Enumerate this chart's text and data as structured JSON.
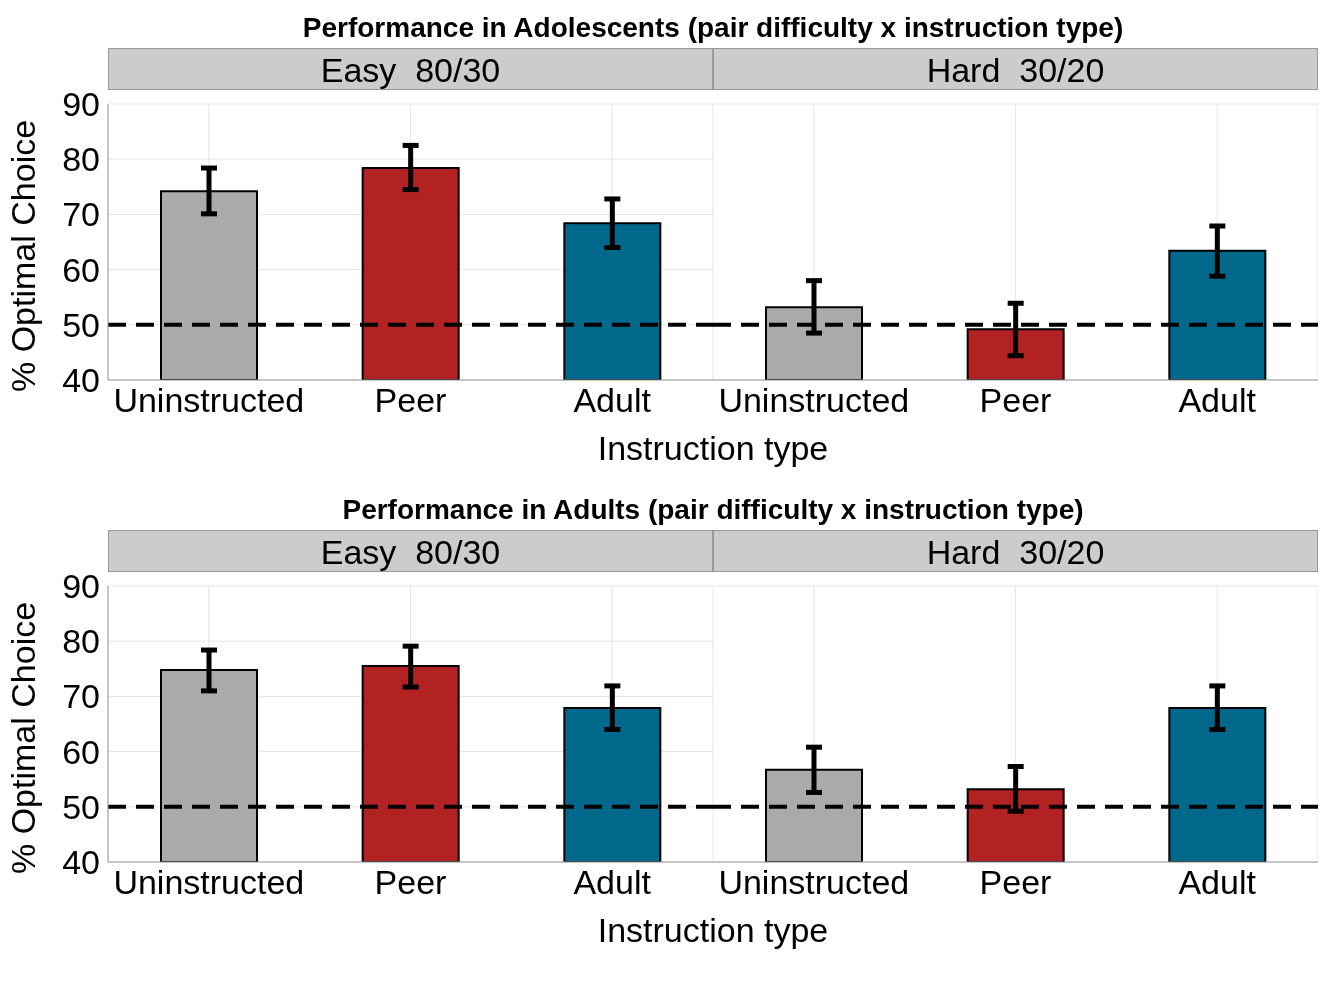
{
  "chart_data": [
    {
      "type": "bar",
      "title": "Performance in Adolescents (pair difficulty x instruction type)",
      "subtitle": "Easy  80/30",
      "xlabel": "Instruction type",
      "ylabel": "% Optimal Choice",
      "categories": [
        "Uninstructed",
        "Peer",
        "Adult"
      ],
      "values": [
        74.2,
        78.4,
        68.4
      ],
      "colors": [
        "#aaaaaa",
        "#b22222",
        "#00688b"
      ],
      "errors": [
        [
          70.1,
          78.4
        ],
        [
          74.5,
          82.5
        ],
        [
          64.0,
          72.8
        ]
      ],
      "ylim": [
        40,
        90
      ],
      "yticks": [
        40,
        50,
        60,
        70,
        80,
        90
      ],
      "grid": true,
      "ref_lines": [
        {
          "axis": "y",
          "value": 50,
          "color": "#000000",
          "line_style": "dashed"
        }
      ]
    },
    {
      "type": "bar",
      "subtitle": "Hard  30/20",
      "categories": [
        "Uninstructed",
        "Peer",
        "Adult"
      ],
      "values": [
        53.2,
        49.2,
        63.4
      ],
      "colors": [
        "#aaaaaa",
        "#b22222",
        "#00688b"
      ],
      "errors": [
        [
          48.5,
          58.0
        ],
        [
          44.4,
          53.9
        ],
        [
          58.8,
          67.9
        ]
      ],
      "ylim": [
        40,
        90
      ],
      "yticks": [
        40,
        50,
        60,
        70,
        80,
        90
      ],
      "tick_labels": "x",
      "grid": true,
      "ref_lines": [
        {
          "axis": "y",
          "value": 50,
          "color": "#000000",
          "line_style": "dashed"
        }
      ]
    },
    {
      "type": "bar",
      "title": "Performance in Adults (pair difficulty x instruction type)",
      "subtitle": "Easy  80/30",
      "xlabel": "Instruction type",
      "ylabel": "% Optimal Choice",
      "categories": [
        "Uninstructed",
        "Peer",
        "Adult"
      ],
      "values": [
        74.8,
        75.5,
        67.9
      ],
      "colors": [
        "#aaaaaa",
        "#b22222",
        "#00688b"
      ],
      "errors": [
        [
          71.0,
          78.4
        ],
        [
          71.7,
          79.1
        ],
        [
          64.0,
          71.9
        ]
      ],
      "ylim": [
        40,
        90
      ],
      "yticks": [
        40,
        50,
        60,
        70,
        80,
        90
      ],
      "grid": true,
      "ref_lines": [
        {
          "axis": "y",
          "value": 50,
          "color": "#000000",
          "line_style": "dashed"
        }
      ]
    },
    {
      "type": "bar",
      "subtitle": "Hard  30/20",
      "categories": [
        "Uninstructed",
        "Peer",
        "Adult"
      ],
      "values": [
        56.7,
        53.2,
        67.9
      ],
      "colors": [
        "#aaaaaa",
        "#b22222",
        "#00688b"
      ],
      "errors": [
        [
          52.6,
          60.8
        ],
        [
          49.2,
          57.3
        ],
        [
          64.0,
          71.9
        ]
      ],
      "ylim": [
        40,
        90
      ],
      "yticks": [
        40,
        50,
        60,
        70,
        80,
        90
      ],
      "tick_labels": "x",
      "grid": true,
      "ref_lines": [
        {
          "axis": "y",
          "value": 50,
          "color": "#000000",
          "line_style": "dashed"
        }
      ]
    }
  ]
}
